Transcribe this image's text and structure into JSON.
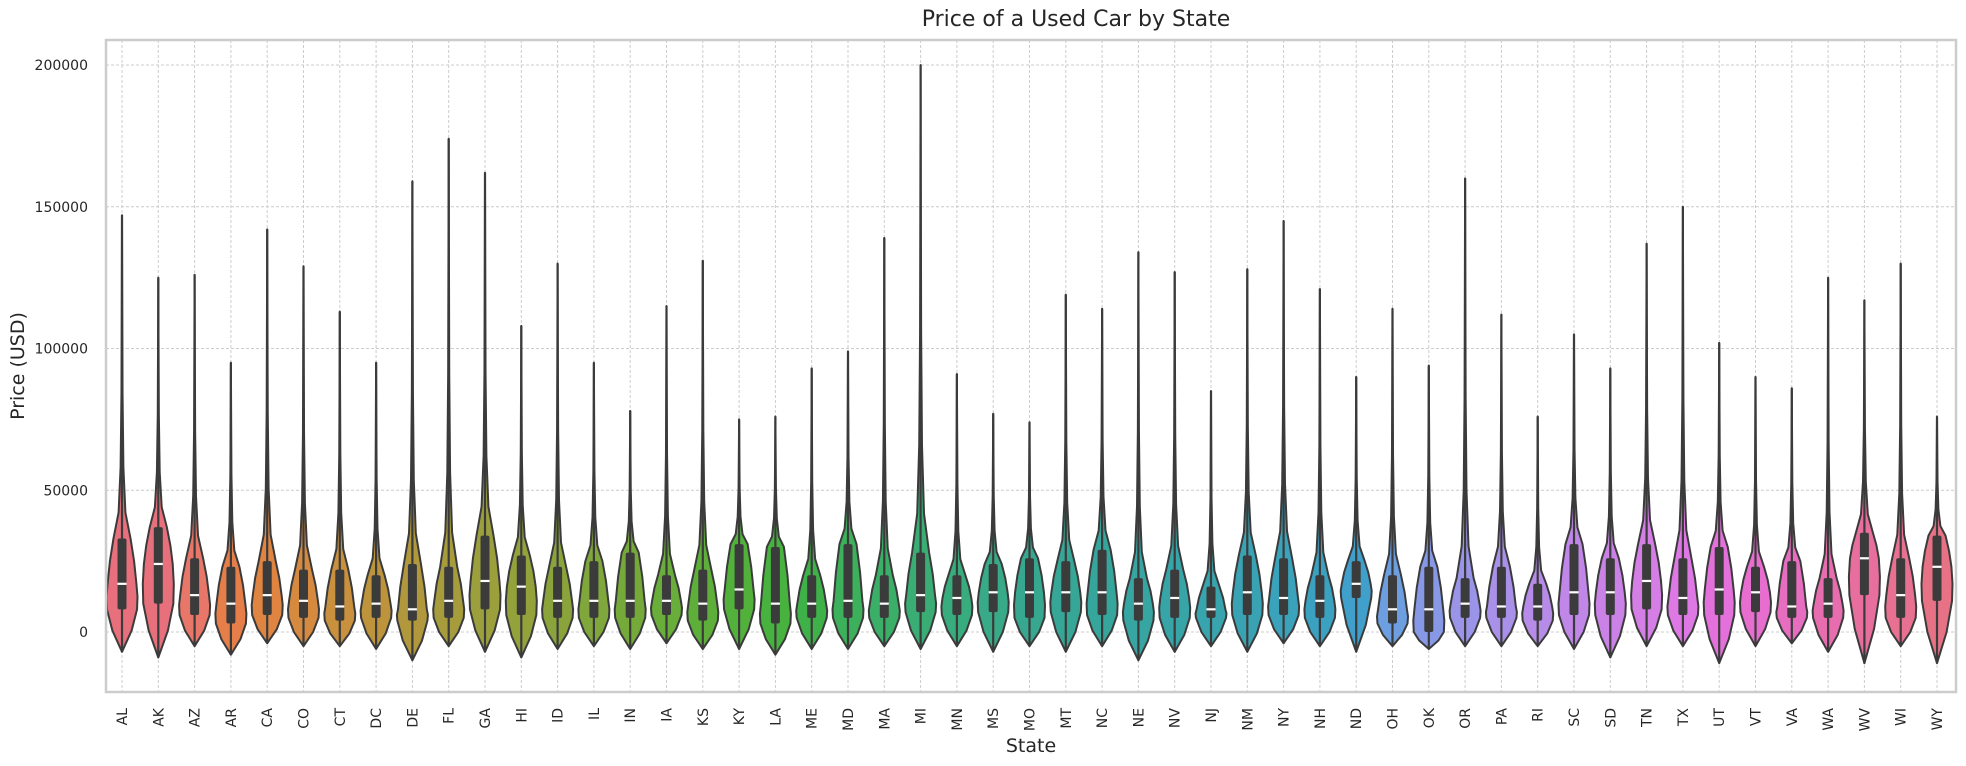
{
  "chart_data": {
    "type": "violin",
    "title": "Price of a Used Car by State",
    "xlabel": "State",
    "ylabel": "Price (USD)",
    "ylim": [
      -20000,
      210000
    ],
    "yticks": [
      0,
      50000,
      100000,
      150000,
      200000
    ],
    "grid": true,
    "categories": [
      "AL",
      "AK",
      "AZ",
      "AR",
      "CA",
      "CO",
      "CT",
      "DC",
      "DE",
      "FL",
      "GA",
      "HI",
      "ID",
      "IL",
      "IN",
      "IA",
      "KS",
      "KY",
      "LA",
      "ME",
      "MD",
      "MA",
      "MI",
      "MN",
      "MS",
      "MO",
      "MT",
      "NC",
      "NE",
      "NV",
      "NJ",
      "NM",
      "NY",
      "NH",
      "ND",
      "OH",
      "OK",
      "OR",
      "PA",
      "RI",
      "SC",
      "SD",
      "TN",
      "TX",
      "UT",
      "VT",
      "VA",
      "WA",
      "WV",
      "WI",
      "WY"
    ],
    "colors": [
      "#e8707c",
      "#e8707c",
      "#e8776a",
      "#e57e48",
      "#e08541",
      "#d68a3f",
      "#c9903d",
      "#bd943c",
      "#b2983c",
      "#a69c3c",
      "#9ca03c",
      "#93a23b",
      "#8aa43b",
      "#80a73b",
      "#75aa3a",
      "#69ad3a",
      "#5eaf3a",
      "#52b13b",
      "#47b23e",
      "#3fb149",
      "#3cb05a",
      "#3baf68",
      "#3aad74",
      "#39ac7e",
      "#38aa87",
      "#37a88f",
      "#36a796",
      "#36a69c",
      "#37a6a2",
      "#37a5a8",
      "#38a4ae",
      "#39a3b4",
      "#3aa2ba",
      "#3ba1c1",
      "#40a0cb",
      "#6c9ee0",
      "#8799e6",
      "#9a95e8",
      "#a990e8",
      "#b68ce8",
      "#c187e8",
      "#cb82e7",
      "#d47ee6",
      "#dd78e4",
      "#e470dc",
      "#e76dcf",
      "#e76dc0",
      "#e76daf",
      "#e76e9d",
      "#e87090",
      "#e87285"
    ],
    "series": [
      {
        "values": [
          {
            "state": "AL",
            "min": -7000,
            "q1": 8000,
            "median": 17000,
            "q3": 33000,
            "max": 147000
          },
          {
            "state": "AK",
            "min": -9000,
            "q1": 10000,
            "median": 24000,
            "q3": 37000,
            "max": 125000
          },
          {
            "state": "AZ",
            "min": -5000,
            "q1": 6000,
            "median": 13000,
            "q3": 26000,
            "max": 126000
          },
          {
            "state": "AR",
            "min": -8000,
            "q1": 3000,
            "median": 10000,
            "q3": 23000,
            "max": 95000
          },
          {
            "state": "CA",
            "min": -4000,
            "q1": 6000,
            "median": 13000,
            "q3": 25000,
            "max": 142000
          },
          {
            "state": "CO",
            "min": -5000,
            "q1": 5000,
            "median": 11000,
            "q3": 22000,
            "max": 129000
          },
          {
            "state": "CT",
            "min": -5000,
            "q1": 4000,
            "median": 9000,
            "q3": 22000,
            "max": 113000
          },
          {
            "state": "DC",
            "min": -6000,
            "q1": 5000,
            "median": 10000,
            "q3": 20000,
            "max": 95000
          },
          {
            "state": "DE",
            "min": -10000,
            "q1": 4000,
            "median": 8000,
            "q3": 24000,
            "max": 159000
          },
          {
            "state": "FL",
            "min": -5000,
            "q1": 5000,
            "median": 11000,
            "q3": 23000,
            "max": 174000
          },
          {
            "state": "GA",
            "min": -7000,
            "q1": 8000,
            "median": 18000,
            "q3": 34000,
            "max": 162000
          },
          {
            "state": "HI",
            "min": -9000,
            "q1": 6000,
            "median": 16000,
            "q3": 27000,
            "max": 108000
          },
          {
            "state": "ID",
            "min": -6000,
            "q1": 5000,
            "median": 11000,
            "q3": 23000,
            "max": 130000
          },
          {
            "state": "IL",
            "min": -5000,
            "q1": 5000,
            "median": 11000,
            "q3": 25000,
            "max": 95000
          },
          {
            "state": "IN",
            "min": -6000,
            "q1": 5000,
            "median": 11000,
            "q3": 28000,
            "max": 78000
          },
          {
            "state": "IA",
            "min": -4000,
            "q1": 6000,
            "median": 11000,
            "q3": 20000,
            "max": 115000
          },
          {
            "state": "KS",
            "min": -6000,
            "q1": 4000,
            "median": 10000,
            "q3": 22000,
            "max": 131000
          },
          {
            "state": "KY",
            "min": -6000,
            "q1": 8000,
            "median": 15000,
            "q3": 31000,
            "max": 75000
          },
          {
            "state": "LA",
            "min": -8000,
            "q1": 3000,
            "median": 10000,
            "q3": 30000,
            "max": 76000
          },
          {
            "state": "ME",
            "min": -6000,
            "q1": 5000,
            "median": 10000,
            "q3": 20000,
            "max": 93000
          },
          {
            "state": "MD",
            "min": -6000,
            "q1": 5000,
            "median": 11000,
            "q3": 31000,
            "max": 99000
          },
          {
            "state": "MA",
            "min": -5000,
            "q1": 5000,
            "median": 10000,
            "q3": 20000,
            "max": 139000
          },
          {
            "state": "MI",
            "min": -6000,
            "q1": 7000,
            "median": 13000,
            "q3": 28000,
            "max": 200000
          },
          {
            "state": "MN",
            "min": -5000,
            "q1": 6000,
            "median": 12000,
            "q3": 20000,
            "max": 91000
          },
          {
            "state": "MS",
            "min": -7000,
            "q1": 7000,
            "median": 14000,
            "q3": 24000,
            "max": 77000
          },
          {
            "state": "MO",
            "min": -5000,
            "q1": 5000,
            "median": 14000,
            "q3": 26000,
            "max": 74000
          },
          {
            "state": "MT",
            "min": -7000,
            "q1": 7000,
            "median": 14000,
            "q3": 25000,
            "max": 119000
          },
          {
            "state": "NC",
            "min": -5000,
            "q1": 6000,
            "median": 14000,
            "q3": 29000,
            "max": 114000
          },
          {
            "state": "NE",
            "min": -10000,
            "q1": 4000,
            "median": 10000,
            "q3": 19000,
            "max": 134000
          },
          {
            "state": "NV",
            "min": -7000,
            "q1": 5000,
            "median": 12000,
            "q3": 22000,
            "max": 127000
          },
          {
            "state": "NJ",
            "min": -5000,
            "q1": 5000,
            "median": 8000,
            "q3": 16000,
            "max": 85000
          },
          {
            "state": "NM",
            "min": -7000,
            "q1": 6000,
            "median": 14000,
            "q3": 27000,
            "max": 128000
          },
          {
            "state": "NY",
            "min": -4000,
            "q1": 6000,
            "median": 12000,
            "q3": 26000,
            "max": 145000
          },
          {
            "state": "NH",
            "min": -5000,
            "q1": 5000,
            "median": 11000,
            "q3": 20000,
            "max": 121000
          },
          {
            "state": "ND",
            "min": -7000,
            "q1": 12000,
            "median": 17000,
            "q3": 25000,
            "max": 90000
          },
          {
            "state": "OH",
            "min": -5000,
            "q1": 3000,
            "median": 8000,
            "q3": 20000,
            "max": 114000
          },
          {
            "state": "OK",
            "min": -6000,
            "q1": 0,
            "median": 8000,
            "q3": 23000,
            "max": 94000
          },
          {
            "state": "OR",
            "min": -5000,
            "q1": 5000,
            "median": 10000,
            "q3": 19000,
            "max": 160000
          },
          {
            "state": "PA",
            "min": -5000,
            "q1": 5000,
            "median": 9000,
            "q3": 23000,
            "max": 112000
          },
          {
            "state": "RI",
            "min": -5000,
            "q1": 4000,
            "median": 9000,
            "q3": 17000,
            "max": 76000
          },
          {
            "state": "SC",
            "min": -6000,
            "q1": 6000,
            "median": 14000,
            "q3": 31000,
            "max": 105000
          },
          {
            "state": "SD",
            "min": -9000,
            "q1": 6000,
            "median": 14000,
            "q3": 26000,
            "max": 93000
          },
          {
            "state": "TN",
            "min": -5000,
            "q1": 8000,
            "median": 18000,
            "q3": 31000,
            "max": 137000
          },
          {
            "state": "TX",
            "min": -5000,
            "q1": 6000,
            "median": 12000,
            "q3": 26000,
            "max": 150000
          },
          {
            "state": "UT",
            "min": -11000,
            "q1": 6000,
            "median": 15000,
            "q3": 30000,
            "max": 102000
          },
          {
            "state": "VT",
            "min": -5000,
            "q1": 7000,
            "median": 14000,
            "q3": 23000,
            "max": 90000
          },
          {
            "state": "VA",
            "min": -4000,
            "q1": 5000,
            "median": 9000,
            "q3": 25000,
            "max": 86000
          },
          {
            "state": "WA",
            "min": -7000,
            "q1": 5000,
            "median": 10000,
            "q3": 19000,
            "max": 125000
          },
          {
            "state": "WV",
            "min": -11000,
            "q1": 13000,
            "median": 26000,
            "q3": 35000,
            "max": 117000
          },
          {
            "state": "WI",
            "min": -5000,
            "q1": 5000,
            "median": 13000,
            "q3": 26000,
            "max": 130000
          },
          {
            "state": "WY",
            "min": -11000,
            "q1": 11000,
            "median": 23000,
            "q3": 34000,
            "max": 76000
          }
        ]
      }
    ]
  }
}
